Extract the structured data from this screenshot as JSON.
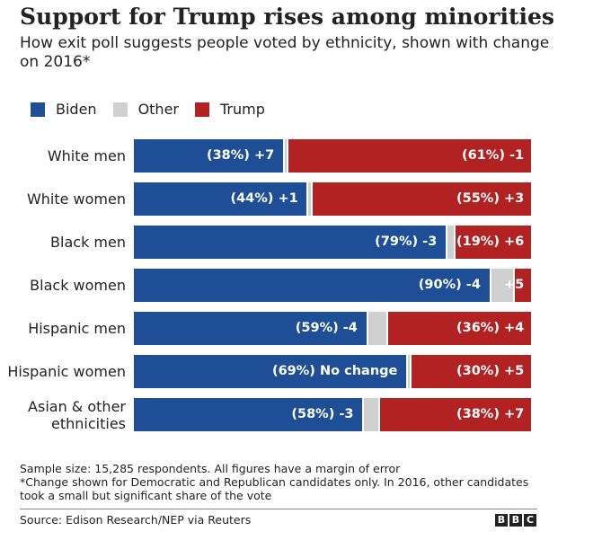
{
  "header": {
    "title": "Support for Trump rises among minorities",
    "subtitle": "How exit poll suggests people voted by ethnicity, shown with change on 2016*"
  },
  "legend": {
    "items": [
      {
        "label": "Biden",
        "color": "#1e4f96"
      },
      {
        "label": "Other",
        "color": "#d0d0d0"
      },
      {
        "label": "Trump",
        "color": "#b22222"
      }
    ]
  },
  "chart_data": {
    "type": "bar",
    "orientation": "horizontal",
    "stacked": true,
    "normalized_percent": true,
    "legend_placement": "top-left",
    "categories": [
      "White men",
      "White women",
      "Black men",
      "Black women",
      "Hispanic men",
      "Hispanic women",
      "Asian & other ethnicities"
    ],
    "series": [
      {
        "name": "Biden",
        "values": [
          38,
          44,
          79,
          90,
          59,
          69,
          58
        ],
        "labels": [
          "(38%) +7",
          "(44%) +1",
          "(79%) -3",
          "(90%) -4",
          "(59%) -4",
          "(69%) No change",
          "(58%) -3"
        ]
      },
      {
        "name": "Other",
        "values": [
          1,
          1,
          2,
          6,
          5,
          1,
          4
        ],
        "labels": [
          "",
          "",
          "",
          "",
          "",
          "",
          ""
        ]
      },
      {
        "name": "Trump",
        "values": [
          61,
          55,
          19,
          4,
          36,
          30,
          38
        ],
        "labels": [
          "(61%) -1",
          "(55%) +3",
          "(19%) +6",
          "+5",
          "(36%) +4",
          "(30%) +5",
          "(38%) +7"
        ]
      }
    ],
    "colors": [
      "#1e4f96",
      "#d0d0d0",
      "#b22222"
    ]
  },
  "footer": {
    "note_1": "Sample size: 15,285 respondents. All figures have a margin of error",
    "note_2": "*Change shown for Democratic and Republican candidates only. In 2016, other candidates took a small but significant share of the vote",
    "source": "Source: Edison Research/NEP via Reuters",
    "logo_letters": [
      "B",
      "B",
      "C"
    ]
  }
}
